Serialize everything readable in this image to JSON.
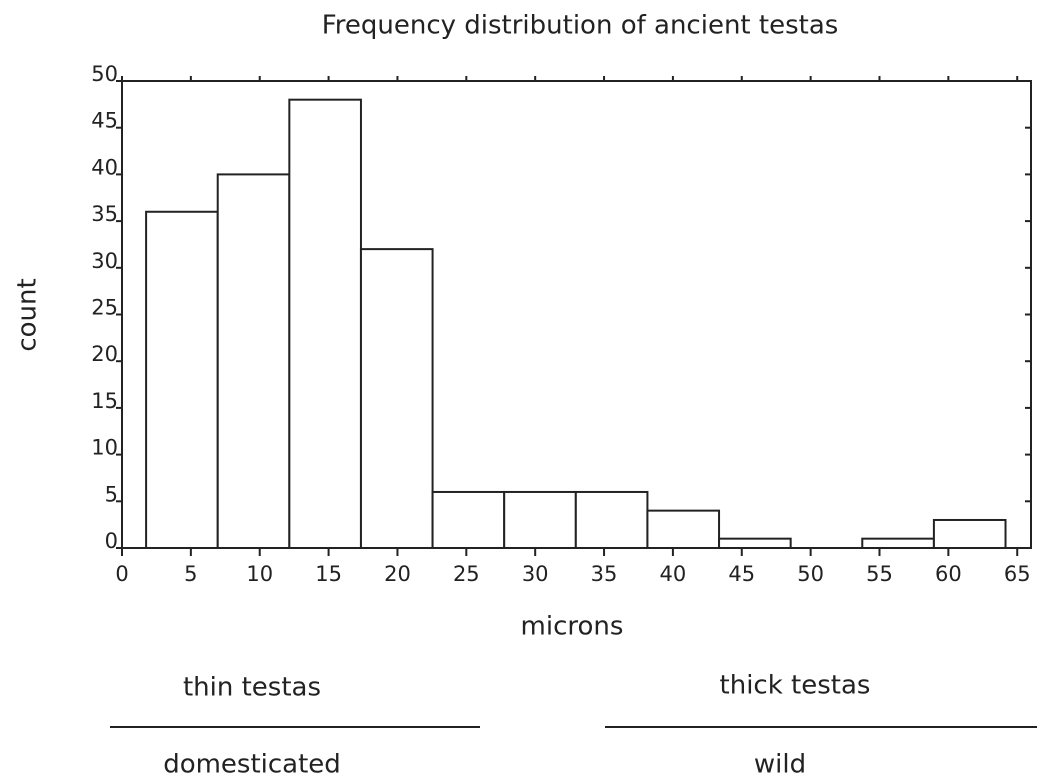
{
  "chart_data": {
    "type": "histogram",
    "title": "Frequency distribution of ancient testas",
    "xlabel": "microns",
    "ylabel": "count",
    "bins": [
      1.75,
      6.95,
      12.15,
      17.35,
      22.55,
      27.75,
      32.95,
      38.15,
      43.35,
      48.55,
      53.75,
      58.95,
      64.15
    ],
    "counts": [
      36,
      40,
      48,
      32,
      6,
      6,
      6,
      4,
      1,
      0,
      1,
      3
    ],
    "color": "#ffffff",
    "xlim": [
      0,
      66
    ],
    "xticks": [
      0,
      5,
      10,
      15,
      20,
      25,
      30,
      35,
      40,
      45,
      50,
      55,
      60,
      65
    ],
    "ylim": [
      0,
      50
    ],
    "yticks": [
      0,
      5,
      10,
      15,
      20,
      25,
      30,
      35,
      40,
      45,
      50
    ],
    "grid": false,
    "annotations": [
      {
        "top": "thin testas",
        "bottom": "domesticated"
      },
      {
        "top": "thick testas",
        "bottom": "wild"
      }
    ]
  }
}
